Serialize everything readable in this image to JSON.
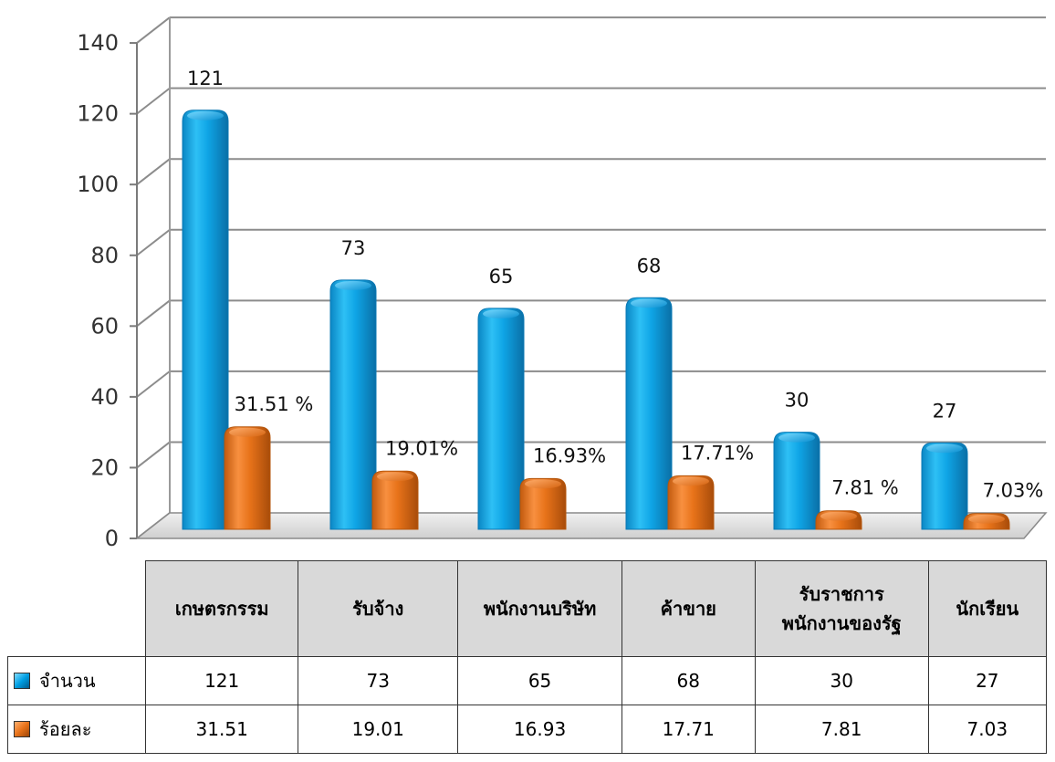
{
  "chart_data": {
    "type": "bar",
    "title": "",
    "categories": [
      "เกษตรกรรม",
      "รับจ้าง",
      "พนักงานบริษัท",
      "ค้าขาย",
      "รับราชการ พนักงานของรัฐ",
      "นักเรียน"
    ],
    "category_lines": [
      [
        "เกษตรกรรม"
      ],
      [
        "รับจ้าง"
      ],
      [
        "พนักงานบริษัท"
      ],
      [
        "ค้าขาย"
      ],
      [
        "รับราชการ",
        "พนักงานของรัฐ"
      ],
      [
        "นักเรียน"
      ]
    ],
    "series": [
      {
        "name": "จำนวน",
        "color": "#0fa5e6",
        "values": [
          121,
          73,
          65,
          68,
          30,
          27
        ],
        "data_labels": [
          "121",
          "73",
          "65",
          "68",
          "30",
          "27"
        ],
        "table_values": [
          "121",
          "73",
          "65",
          "68",
          "30",
          "27"
        ]
      },
      {
        "name": "ร้อยละ",
        "color": "#e8731a",
        "values": [
          31.51,
          19.01,
          16.93,
          17.71,
          7.81,
          7.03
        ],
        "data_labels": [
          "31.51 %",
          "19.01%",
          "16.93%",
          "17.71%",
          "7.81 %",
          "7.03%"
        ],
        "table_values": [
          "31.51",
          "19.01",
          "16.93",
          "17.71",
          "7.81",
          "7.03"
        ]
      }
    ],
    "ylim": [
      0,
      140
    ],
    "yticks": [
      "0",
      "20",
      "40",
      "60",
      "80",
      "100",
      "120",
      "140"
    ],
    "grid": true,
    "legend": "data-table-below",
    "xlabel": "",
    "ylabel": ""
  }
}
